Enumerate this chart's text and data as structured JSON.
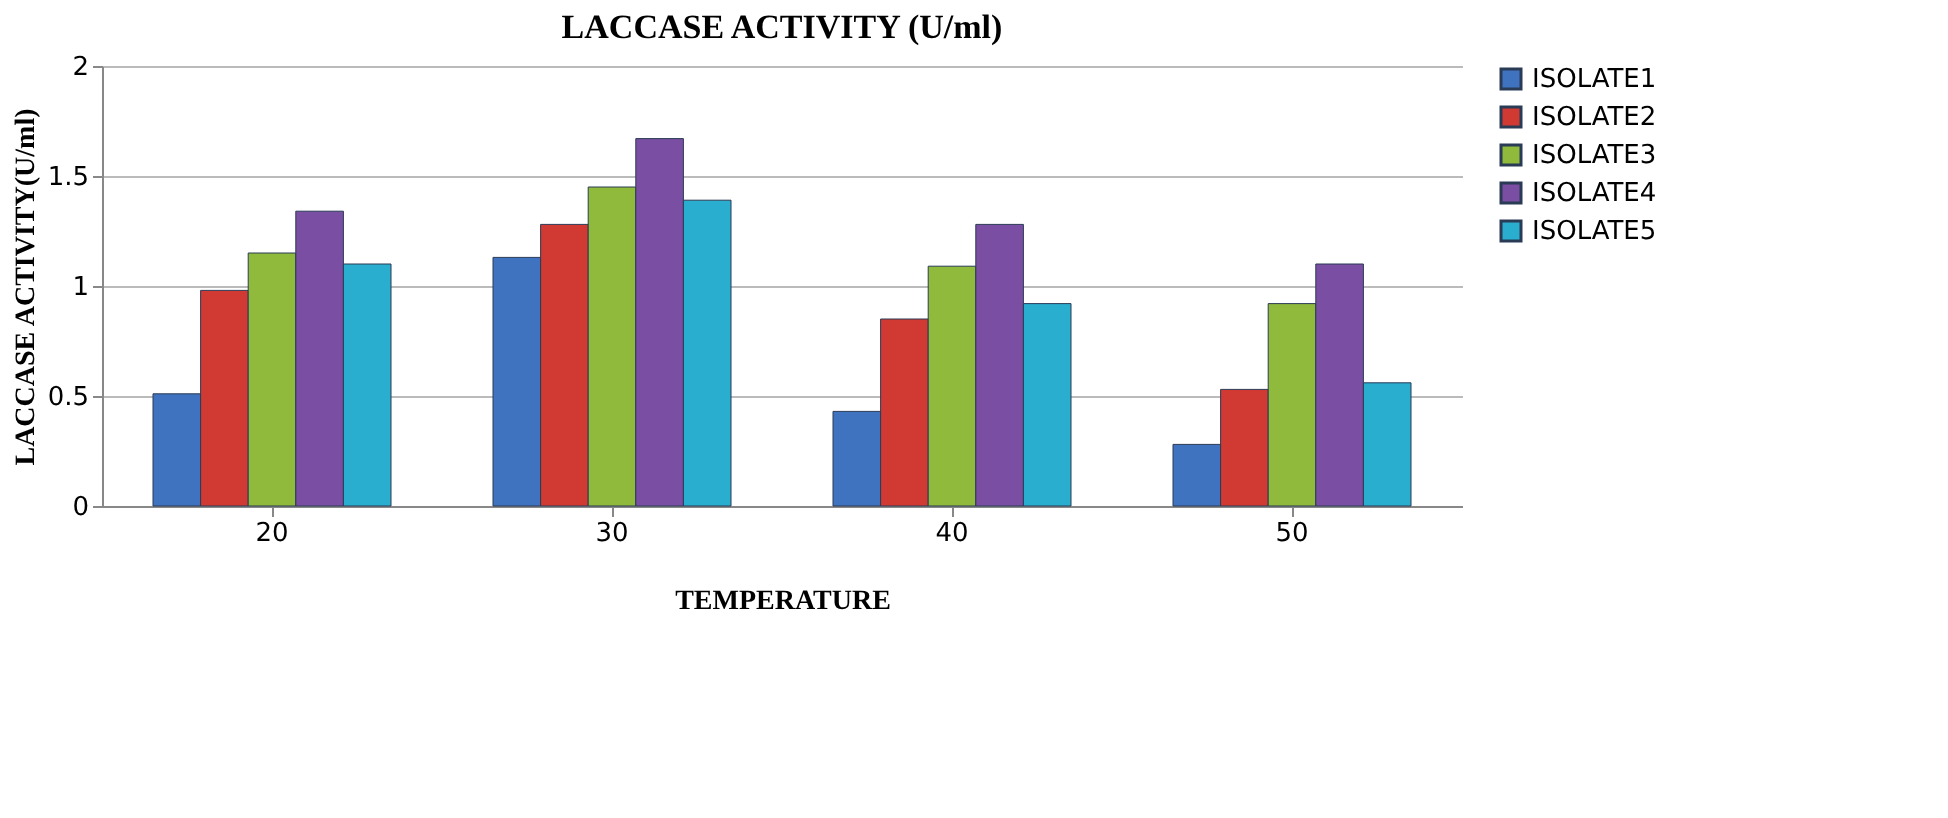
{
  "chart_data": {
    "type": "bar",
    "title": "LACCASE ACTIVITY (U/ml)",
    "xlabel": "TEMPERATURE",
    "ylabel": "LACCASE ACTIVITY(U/ml)",
    "categories": [
      "20",
      "30",
      "40",
      "50"
    ],
    "series": [
      {
        "name": "ISOLATE1",
        "color": "#3f73c0",
        "values": [
          0.51,
          1.13,
          0.43,
          0.28
        ]
      },
      {
        "name": "ISOLATE2",
        "color": "#d03a32",
        "values": [
          0.98,
          1.28,
          0.85,
          0.53
        ]
      },
      {
        "name": "ISOLATE3",
        "color": "#8fba3c",
        "values": [
          1.15,
          1.45,
          1.09,
          0.92
        ]
      },
      {
        "name": "ISOLATE4",
        "color": "#7a4fa3",
        "values": [
          1.34,
          1.67,
          1.28,
          1.1
        ]
      },
      {
        "name": "ISOLATE5",
        "color": "#2aaed0",
        "values": [
          1.1,
          1.39,
          0.92,
          0.56
        ]
      }
    ],
    "ylim": [
      0,
      2
    ],
    "yticks": [
      0,
      0.5,
      1,
      1.5,
      2
    ],
    "grid": "y",
    "legend": "right"
  }
}
